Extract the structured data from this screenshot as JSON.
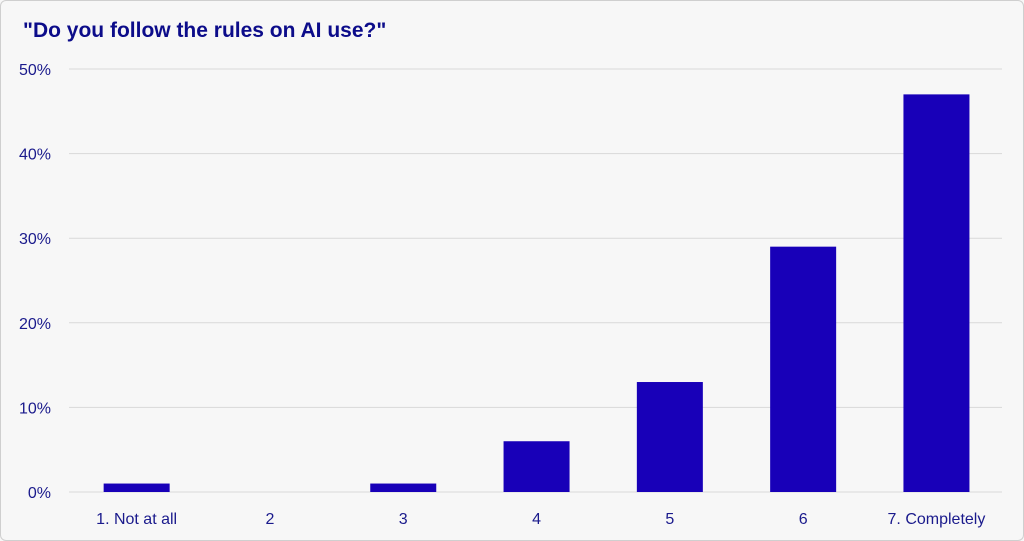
{
  "chart_data": {
    "type": "bar",
    "title": "\"Do you follow the rules on AI use?\"",
    "xlabel": "",
    "ylabel": "",
    "categories": [
      "1. Not at all",
      "2",
      "3",
      "4",
      "5",
      "6",
      "7. Completely"
    ],
    "values": [
      1,
      0,
      1,
      6,
      13,
      29,
      47
    ],
    "y_ticks": [
      "0%",
      "10%",
      "20%",
      "30%",
      "40%",
      "50%"
    ],
    "y_tick_values": [
      0,
      10,
      20,
      30,
      40,
      50
    ],
    "ylim": [
      0,
      50
    ],
    "grid": true,
    "bar_color": "#1800b8",
    "grid_color": "#d9d9d9",
    "text_color": "#1a1a8c"
  }
}
